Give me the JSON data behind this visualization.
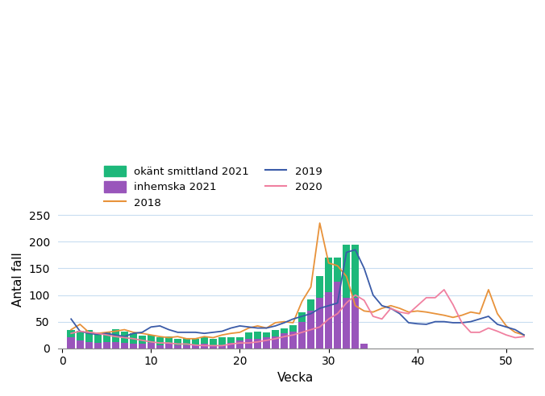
{
  "weeks": [
    1,
    2,
    3,
    4,
    5,
    6,
    7,
    8,
    9,
    10,
    11,
    12,
    13,
    14,
    15,
    16,
    17,
    18,
    19,
    20,
    21,
    22,
    23,
    24,
    25,
    26,
    27,
    28,
    29,
    30,
    31,
    32,
    33,
    34
  ],
  "inhemska_2021": [
    20,
    15,
    12,
    10,
    12,
    12,
    10,
    8,
    8,
    10,
    6,
    8,
    6,
    5,
    6,
    8,
    6,
    6,
    10,
    15,
    18,
    18,
    20,
    22,
    28,
    32,
    50,
    70,
    95,
    105,
    125,
    95,
    95,
    8
  ],
  "okant_2021": [
    14,
    18,
    22,
    20,
    18,
    24,
    22,
    20,
    16,
    16,
    14,
    14,
    12,
    14,
    12,
    12,
    12,
    14,
    10,
    6,
    12,
    14,
    10,
    12,
    10,
    12,
    18,
    22,
    40,
    65,
    45,
    100,
    100,
    0
  ],
  "line_2018": [
    35,
    45,
    30,
    28,
    30,
    32,
    35,
    30,
    28,
    25,
    22,
    20,
    22,
    18,
    18,
    22,
    20,
    25,
    28,
    30,
    38,
    42,
    38,
    48,
    50,
    48,
    88,
    115,
    235,
    160,
    155,
    135,
    80,
    70,
    68,
    75,
    80,
    75,
    68,
    70,
    68,
    65,
    62,
    58,
    62,
    68,
    65,
    110,
    65,
    42,
    30,
    25
  ],
  "line_2019": [
    55,
    32,
    28,
    26,
    28,
    25,
    22,
    28,
    30,
    40,
    42,
    35,
    30,
    30,
    30,
    28,
    30,
    32,
    38,
    42,
    40,
    38,
    38,
    42,
    48,
    55,
    60,
    65,
    75,
    80,
    85,
    180,
    185,
    150,
    100,
    80,
    75,
    65,
    48,
    46,
    45,
    50,
    50,
    48,
    48,
    50,
    55,
    60,
    45,
    40,
    35,
    25
  ],
  "line_2020": [
    28,
    32,
    30,
    28,
    25,
    22,
    20,
    18,
    15,
    12,
    10,
    10,
    8,
    8,
    6,
    5,
    5,
    5,
    8,
    10,
    10,
    12,
    15,
    18,
    22,
    25,
    30,
    35,
    40,
    55,
    65,
    85,
    100,
    90,
    60,
    55,
    75,
    68,
    65,
    80,
    95,
    95,
    110,
    82,
    48,
    30,
    30,
    38,
    32,
    25,
    20,
    22
  ],
  "color_inhemska": "#9955bb",
  "color_okant": "#1db87a",
  "color_2018": "#e8923a",
  "color_2019": "#3a5ba8",
  "color_2020": "#f080a0",
  "xlabel": "Vecka",
  "ylabel": "Antal fall",
  "ylim": [
    0,
    260
  ],
  "yticks": [
    0,
    50,
    100,
    150,
    200,
    250
  ],
  "xticks": [
    0,
    10,
    20,
    30,
    40,
    50
  ],
  "background_color": "#ffffff",
  "grid_color": "#c8ddf0"
}
